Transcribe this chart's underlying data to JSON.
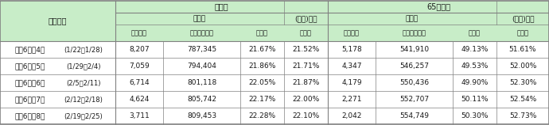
{
  "header_bg": "#c8edc8",
  "border_color": "#808080",
  "col1_header": "集計期間",
  "group1_header": "全年代",
  "group2_header": "65歳以上",
  "sub1_header": "静岡県",
  "sub2_header": "(参考)全国",
  "sub3_header": "静岡県",
  "sub4_header": "(参考)全国",
  "col_headers": [
    "接種者数",
    "接種者数累計",
    "接種率",
    "接種率",
    "接種者数",
    "接種者数累計",
    "接種率",
    "接種率"
  ],
  "rows": [
    [
      "令和6年第4週",
      "(1/22～1/28)",
      "8,207",
      "787,345",
      "21.67%",
      "21.52%",
      "5,178",
      "541,910",
      "49.13%",
      "51.61%"
    ],
    [
      "令和6年第5週",
      "(1/29～2/4)",
      "7,059",
      "794,404",
      "21.86%",
      "21.71%",
      "4,347",
      "546,257",
      "49.53%",
      "52.00%"
    ],
    [
      "令和6年第6週",
      "(2/5～2/11)",
      "6,714",
      "801,118",
      "22.05%",
      "21.87%",
      "4,179",
      "550,436",
      "49.90%",
      "52.30%"
    ],
    [
      "令和6年第7週",
      "(2/12～2/18)",
      "4,624",
      "805,742",
      "22.17%",
      "22.00%",
      "2,271",
      "552,707",
      "50.11%",
      "52.54%"
    ],
    [
      "令和6年第8週",
      "(2/19～2/25)",
      "3,711",
      "809,453",
      "22.28%",
      "22.10%",
      "2,042",
      "554,749",
      "50.30%",
      "52.73%"
    ]
  ],
  "figsize": [
    6.9,
    1.58
  ],
  "dpi": 100
}
